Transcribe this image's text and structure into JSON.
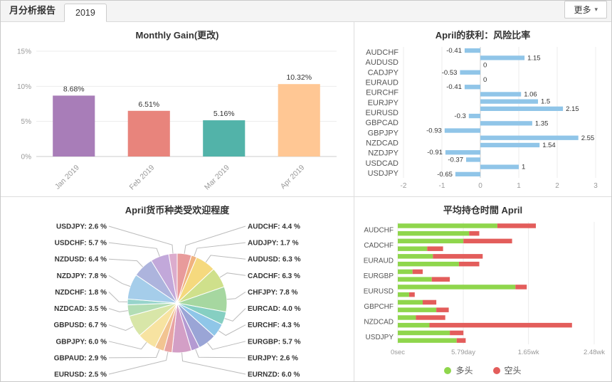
{
  "header": {
    "tab_report": "月分析报告",
    "tab_year": "2019",
    "more_label": "更多",
    "caret": "▾"
  },
  "chart_data": [
    {
      "type": "bar",
      "title": "Monthly Gain(更改)",
      "categories": [
        "Jan 2019",
        "Feb 2019",
        "Mar 2019",
        "Apr 2019"
      ],
      "values": [
        8.68,
        6.51,
        5.16,
        10.32
      ],
      "value_labels": [
        "8.68%",
        "6.51%",
        "5.16%",
        "10.32%"
      ],
      "bar_colors": [
        "#a87db8",
        "#e8847c",
        "#52b3a9",
        "#ffc794"
      ],
      "xlabel": "",
      "ylabel": "",
      "ylim": [
        0,
        15
      ],
      "yticks": [
        0,
        5,
        10,
        15
      ],
      "ytick_labels": [
        "0%",
        "5%",
        "10%",
        "15%"
      ],
      "grid": true,
      "legend_position": "none"
    },
    {
      "type": "bar",
      "orientation": "horizontal",
      "title": "April的获利：风险比率",
      "axis_labels": [
        "AUDCHF",
        "AUDUSD",
        "CADJPY",
        "EURAUD",
        "EURCHF",
        "EURJPY",
        "EURUSD",
        "GBPCAD",
        "GBPJPY",
        "NZDCAD",
        "NZDJPY",
        "USDCAD",
        "USDJPY"
      ],
      "values": [
        -0.41,
        1.15,
        0,
        -0.53,
        0,
        -0.41,
        1.06,
        1.5,
        2.15,
        -0.3,
        1.35,
        -0.93,
        2.55,
        1.54,
        -0.91,
        -0.37,
        1,
        -0.65
      ],
      "xlim": [
        -2,
        3
      ],
      "xticks": [
        -2,
        -1,
        0,
        1,
        2,
        3
      ],
      "bar_color": "#90c5e8",
      "grid": true,
      "legend_position": "none"
    },
    {
      "type": "pie",
      "title": "April货币种类受欢迎程度",
      "labels": [
        "AUDCHF",
        "AUDJPY",
        "AUDUSD",
        "CADCHF",
        "CHFJPY",
        "EURCAD",
        "EURCHF",
        "EURGBP",
        "EURJPY",
        "EURNZD",
        "EURUSD",
        "GBPAUD",
        "GBPJPY",
        "GBPUSD",
        "NZDCAD",
        "NZDCHF",
        "NZDJPY",
        "NZDUSD",
        "USDCHF",
        "USDJPY"
      ],
      "values": [
        4.4,
        1.7,
        6.3,
        6.3,
        7.8,
        4.0,
        4.3,
        5.7,
        2.6,
        6.0,
        2.5,
        2.9,
        6.0,
        6.7,
        3.5,
        1.8,
        7.8,
        6.4,
        5.7,
        2.6
      ],
      "value_labels": [
        "4.4",
        "1.7",
        "6.3",
        "6.3",
        "7.8",
        "4.0",
        "4.3",
        "5.7",
        "2.6",
        "6.0",
        "2.5",
        "2.9",
        "6.0",
        "6.7",
        "3.5",
        "1.8",
        "7.8",
        "6.4",
        "5.7",
        "2.6"
      ],
      "colors": [
        "#e89b9b",
        "#f0b27f",
        "#f5d97e",
        "#cfe08b",
        "#a6d7a0",
        "#86cfc2",
        "#8fc6e8",
        "#9aa5d6",
        "#b49ad2",
        "#d39fc6",
        "#e8a4a4",
        "#f2c491",
        "#f7e3a1",
        "#d8e6a8",
        "#b2ddb4",
        "#97d4cb",
        "#a5cdea",
        "#adb4dd",
        "#c2a8da",
        "#dcaccd"
      ],
      "start_angle_deg": -90,
      "direction": "clockwise",
      "label_format": "{name}: {value} %"
    },
    {
      "type": "bar",
      "orientation": "horizontal",
      "stacked": true,
      "title": "平均持仓时間 April",
      "axis_labels": [
        "AUDCHF",
        "CADCHF",
        "EURAUD",
        "EURGBP",
        "EURUSD",
        "GBPCHF",
        "NZDCAD",
        "USDJPY"
      ],
      "series": [
        {
          "name": "多头",
          "color": "#8fd64c",
          "values": [
            8.8,
            6.3,
            5.8,
            2.6,
            3.1,
            5.4,
            1.3,
            3.0,
            10.4,
            1.0,
            2.2,
            3.4,
            1.6,
            2.8,
            4.6,
            5.2
          ]
        },
        {
          "name": "空头",
          "color": "#e35d5b",
          "values": [
            3.4,
            0.9,
            4.3,
            1.4,
            4.4,
            1.8,
            0.9,
            1.6,
            1.0,
            0.5,
            1.2,
            1.1,
            2.6,
            12.6,
            1.2,
            0.8
          ]
        }
      ],
      "xlim_days": [
        0,
        17.36
      ],
      "xticks_days": [
        0,
        5.79,
        11.55,
        17.36
      ],
      "xtick_labels": [
        "0sec",
        "5.79day",
        "1.65wk",
        "2.48wk"
      ],
      "grid": true,
      "legend_position": "bottom"
    }
  ]
}
